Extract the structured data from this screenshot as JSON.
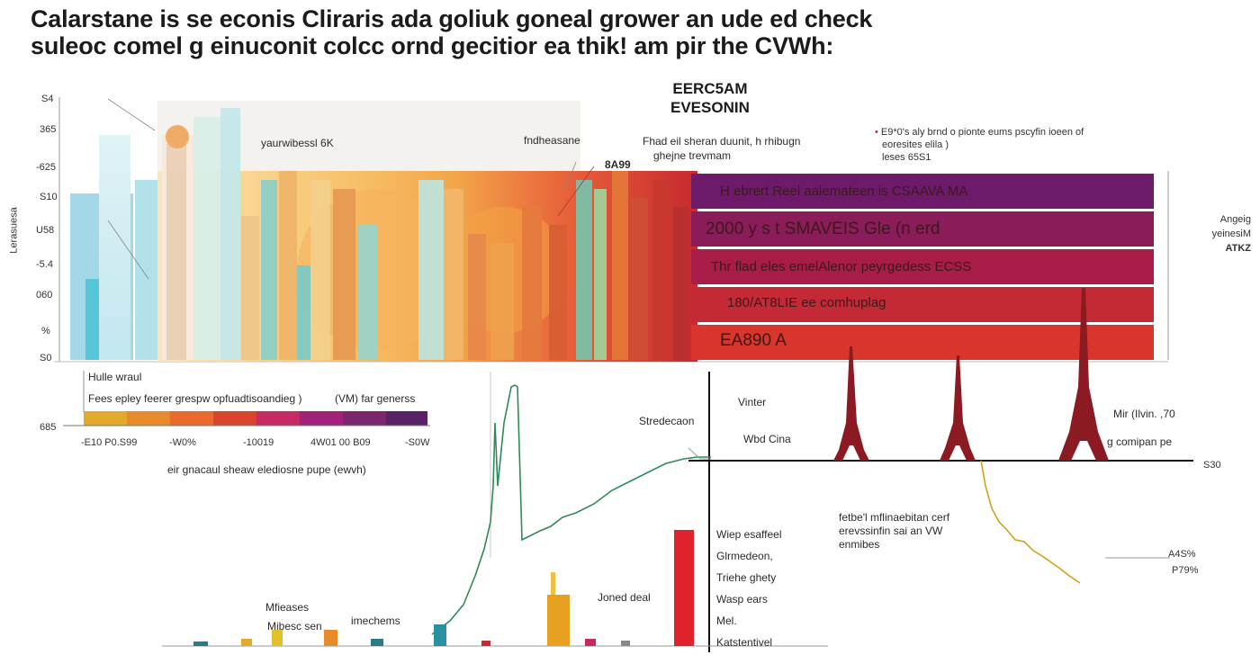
{
  "title": {
    "line1": "Calarstane is se econis Cliraris ada goliuk goneal grower an ude ed check",
    "line2": "suleoc comel g einuconit colcc ornd gecitior ea thik! am pir the CVWh:"
  },
  "top_chart": {
    "heading_line1": "EERC5AM",
    "heading_line2": "EVESONIN",
    "y_ticks": [
      "S4",
      "365",
      "-625",
      "S10",
      "U58",
      "-5.4",
      "060",
      "%",
      "S0"
    ],
    "y_axis_label": "Lerasuesa",
    "annotation_left": "yaurwibessl 6K",
    "annotation_mid": "fndheasane",
    "annotation_mid2_line1": "Fhad eil sheran duunit, h rhibugn",
    "annotation_mid2_line2": "ghejne trevmam",
    "marker_value": "8A99",
    "legend_note_line1": "E9*0's aly brnd o pionte eums pscyfin ioeen of",
    "legend_note_line2": "eoresites elila )",
    "legend_note_line3": "leses 65S1",
    "right_label_line1": "Angeig",
    "right_label_line2": "yeinesiM",
    "right_label_line3": "ATKZ",
    "bars": [
      {
        "label": "H ebrert Reel aalemateen is CSAAVA MA",
        "color": "#6e1a6a"
      },
      {
        "label": "2000 y s t SMAVEIS Gle (n erd",
        "color": "#8a1c5a"
      },
      {
        "label": "Thr flad eles emelAlenor peyrgedess ECSS",
        "color": "#a81c48"
      },
      {
        "label": "180/AT8LIE ee comhuplag",
        "color": "#c42a36"
      },
      {
        "label": "EA890 A",
        "color": "#d8352c"
      }
    ]
  },
  "scale_legend": {
    "note_line1": "Hulle wraul",
    "note_line2": "Fees epley feerer grespw opfuadtisoandieg )",
    "note_line3": "(VM) far generss",
    "left_value": "685",
    "ticks": [
      "-E10 P0.S99",
      "-W0%",
      "-10019",
      "4W01 00 B09",
      "-S0W"
    ],
    "caption": "eir gnacaul sheaw elediosne pupe (ewvh)",
    "colors": [
      "#e3a92a",
      "#e78a2c",
      "#ea6a2e",
      "#d8452c",
      "#c42a64",
      "#a0227a",
      "#7a2770",
      "#5a2266"
    ]
  },
  "bottom_chart": {
    "annotation_mid_left": "Stredecaon",
    "annotation_top": "Vinter",
    "annotation_line": "Wbd Cina",
    "annotation_right": "Mir (Ilvin. ,70",
    "annotation_right2": "g comipan pe",
    "axis_right_value": "S30",
    "left_notes": [
      "Mfieases",
      "Mibesc sen",
      "imechems"
    ],
    "bar_note": "Joned deal",
    "list_items": [
      "Wiep esaffeel",
      "Glrmedeon,",
      "Triehe ghety",
      "Wasp ears",
      "Mel.",
      "Katstentivel"
    ],
    "para_line1": "fetbe'l mflinaebitan cerf",
    "para_line2": "erevssinfin sai an VW",
    "para_line3": "enmibes",
    "right_values": [
      "A4S%",
      "P79%"
    ],
    "line_color": "#2e8b57",
    "decline_color": "#d4a017",
    "tower_color": "#8b1a22"
  }
}
